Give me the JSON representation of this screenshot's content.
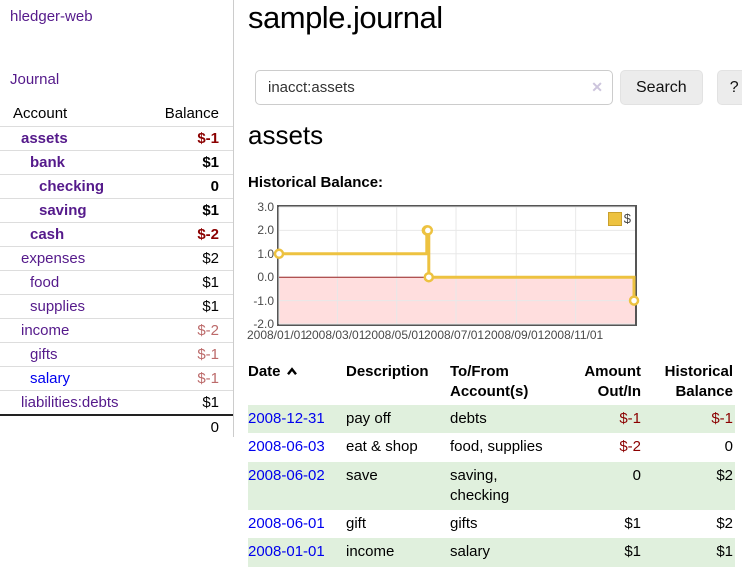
{
  "colors": {
    "link_purple": "#551a8b",
    "link_blue": "#0000ee",
    "negative_strong": "#8b0000",
    "negative_soft": "#bc6a6a",
    "row_stripe_green": "#e0f0dd",
    "chart_line_gold": "#edc240",
    "chart_negative_fill": "#ffdede",
    "chart_zero_line": "#992222"
  },
  "sidebar": {
    "brand": "hledger-web",
    "journal_link": "Journal",
    "account_header": "Account",
    "balance_header": "Balance",
    "accounts": [
      {
        "name": "assets",
        "depth": 1,
        "bold": true,
        "link": "purple",
        "balance": "$-1",
        "style": "neg"
      },
      {
        "name": "bank",
        "depth": 2,
        "bold": true,
        "link": "purple",
        "balance": "$1",
        "style": "norm"
      },
      {
        "name": "checking",
        "depth": 3,
        "bold": true,
        "link": "purple",
        "balance": "0",
        "style": "norm"
      },
      {
        "name": "saving",
        "depth": 3,
        "bold": true,
        "link": "purple",
        "balance": "$1",
        "style": "norm"
      },
      {
        "name": "cash",
        "depth": 2,
        "bold": true,
        "link": "purple",
        "balance": "$-2",
        "style": "neg"
      },
      {
        "name": "expenses",
        "depth": 1,
        "bold": false,
        "link": "purple",
        "balance": "$2",
        "style": "norm"
      },
      {
        "name": "food",
        "depth": 2,
        "bold": false,
        "link": "purple",
        "balance": "$1",
        "style": "norm"
      },
      {
        "name": "supplies",
        "depth": 2,
        "bold": false,
        "link": "purple",
        "balance": "$1",
        "style": "norm"
      },
      {
        "name": "income",
        "depth": 1,
        "bold": false,
        "link": "purple",
        "balance": "$-2",
        "style": "negsoft"
      },
      {
        "name": "gifts",
        "depth": 2,
        "bold": false,
        "link": "purple",
        "balance": "$-1",
        "style": "negsoft"
      },
      {
        "name": "salary",
        "depth": 2,
        "bold": false,
        "link": "blue",
        "balance": "$-1",
        "style": "negsoft"
      },
      {
        "name": "liabilities:debts",
        "depth": 1,
        "bold": false,
        "link": "purple",
        "balance": "$1",
        "style": "norm"
      }
    ],
    "total": "0"
  },
  "main": {
    "title": "sample.journal",
    "search": {
      "value": "inacct:assets",
      "clear_icon": "✕",
      "button_label": "Search",
      "help_label": "?"
    },
    "account_heading": "assets",
    "chart_label": "Historical Balance:",
    "register": {
      "headers": {
        "date": "Date",
        "description": "Description",
        "account": "To/From Account(s)",
        "amount": "Amount Out/In",
        "balance": "Historical Balance"
      },
      "rows": [
        {
          "date": "2008-12-31",
          "description": "pay off",
          "accounts": "debts",
          "amount": "$-1",
          "amount_neg": true,
          "balance": "$-1",
          "balance_neg": true
        },
        {
          "date": "2008-06-03",
          "description": "eat & shop",
          "accounts": "food, supplies",
          "amount": "$-2",
          "amount_neg": true,
          "balance": "0",
          "balance_neg": false
        },
        {
          "date": "2008-06-02",
          "description": "save",
          "accounts": "saving, checking",
          "amount": "0",
          "amount_neg": false,
          "balance": "$2",
          "balance_neg": false
        },
        {
          "date": "2008-06-01",
          "description": "gift",
          "accounts": "gifts",
          "amount": "$1",
          "amount_neg": false,
          "balance": "$2",
          "balance_neg": false
        },
        {
          "date": "2008-01-01",
          "description": "income",
          "accounts": "salary",
          "amount": "$1",
          "amount_neg": false,
          "balance": "$1",
          "balance_neg": false
        }
      ]
    }
  },
  "chart_data": {
    "type": "line",
    "title": "Historical Balance",
    "legend": "$",
    "step": true,
    "x_range": [
      "2008-01-01",
      "2009-01-01"
    ],
    "ylim": [
      -2,
      3
    ],
    "yticks": [
      "3.0",
      "2.0",
      "1.0",
      "0.0",
      "-1.0",
      "-2.0"
    ],
    "xticks": [
      "2008/01/01",
      "2008/03/01",
      "2008/05/01",
      "2008/07/01",
      "2008/09/01",
      "2008/11/01"
    ],
    "series": [
      {
        "name": "$",
        "color": "#edc240",
        "points": [
          [
            "2008-01-01",
            1
          ],
          [
            "2008-06-01",
            2
          ],
          [
            "2008-06-02",
            2
          ],
          [
            "2008-06-03",
            0
          ],
          [
            "2008-12-31",
            -1
          ]
        ]
      }
    ],
    "negative_fill": "#ffdede",
    "zero_line_color": "#992222",
    "grid_color": "#e8e8e8",
    "border_color": "#555555",
    "grid": true,
    "legend_position": "top-right"
  }
}
